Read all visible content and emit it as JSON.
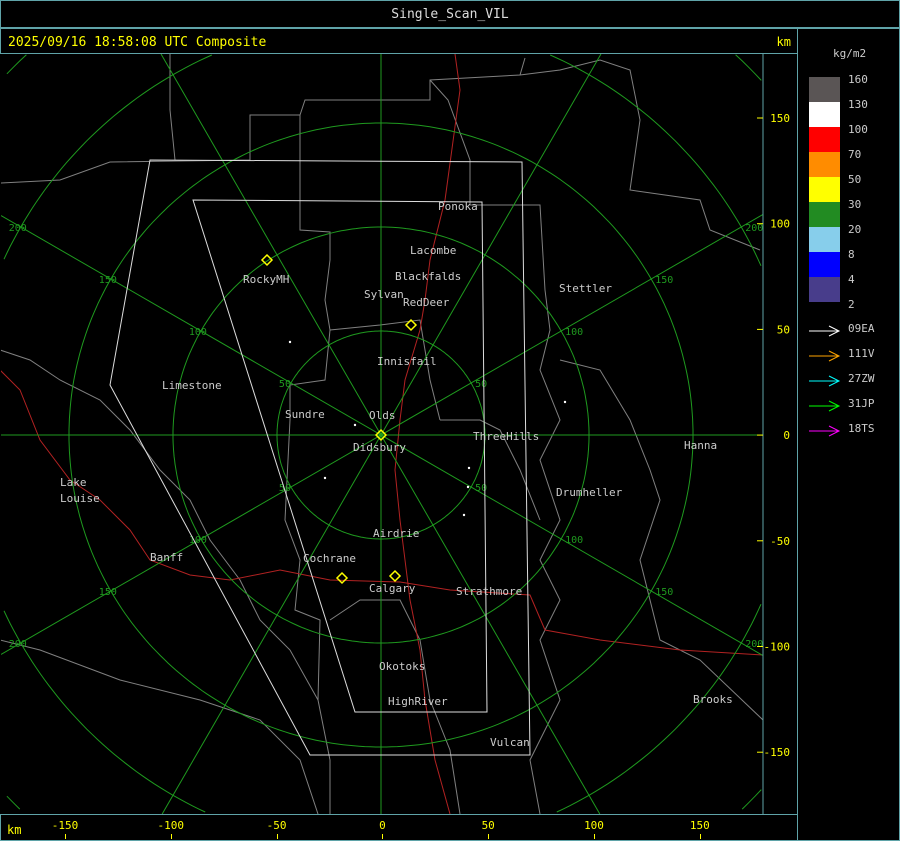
{
  "title": "Single_Scan_VIL",
  "timestamp": "2025/09/16 18:58:08 UTC Composite",
  "km_label": "km",
  "legend": {
    "unit": "kg/m2",
    "bins": [
      {
        "label": "160",
        "color": "#5a5555"
      },
      {
        "label": "130",
        "color": "#ffffff"
      },
      {
        "label": "100",
        "color": "#ff0000"
      },
      {
        "label": "70",
        "color": "#ff8c00"
      },
      {
        "label": "50",
        "color": "#ffff00"
      },
      {
        "label": "30",
        "color": "#228b22"
      },
      {
        "label": "20",
        "color": "#87ceeb"
      },
      {
        "label": "8",
        "color": "#0000ff"
      },
      {
        "label": "4",
        "color": "#483d8b"
      },
      {
        "label": "2",
        "color": ""
      }
    ],
    "tracks": [
      {
        "label": "09EA",
        "color": "#ffffff"
      },
      {
        "label": "111V",
        "color": "#ffa500"
      },
      {
        "label": "27ZW",
        "color": "#00ffff"
      },
      {
        "label": "31JP",
        "color": "#00ff00"
      },
      {
        "label": "18TS",
        "color": "#ff00ff"
      }
    ]
  },
  "x_axis": {
    "ticks": [
      "-150",
      "-100",
      "-50",
      "0",
      "50",
      "100",
      "150"
    ]
  },
  "y_axis": {
    "ticks": [
      "150",
      "100",
      "50",
      "0",
      "-50",
      "-100",
      "-150"
    ]
  },
  "range_rings": [
    "50",
    "100",
    "150",
    "200",
    "250"
  ],
  "cities": [
    "Ponoka",
    "Lacombe",
    "Blackfalds",
    "Sylvan",
    "RedDeer",
    "Stettler",
    "RockyMH",
    "Innisfail",
    "Limestone",
    "Sundre",
    "Olds",
    "Didsbury",
    "ThreeHills",
    "Hanna",
    "Lake",
    "Louise",
    "Drumheller",
    "Airdrie",
    "Banff",
    "Cochrane",
    "Calgary",
    "Strathmore",
    "Okotoks",
    "Brooks",
    "HighRiver",
    "Vulcan"
  ],
  "colors": {
    "ring": "#1f9a1f",
    "border": "#808080",
    "river": "#b22222",
    "axis": "#ffff00",
    "frame": "#5fa3a8"
  }
}
